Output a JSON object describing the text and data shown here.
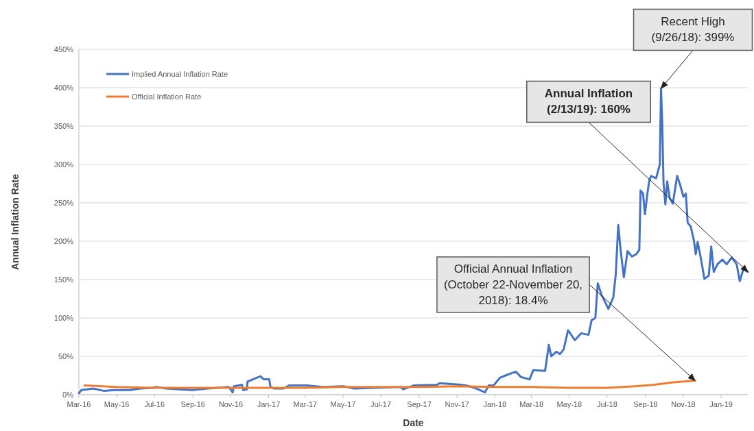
{
  "chart_data": {
    "type": "line",
    "xlabel": "Date",
    "ylabel": "Annual Inflation Rate",
    "xlim": [
      "2016-03-01",
      "2019-02-13"
    ],
    "ylim": [
      0,
      450
    ],
    "xticks": [
      {
        "value": "2016-03-01",
        "label": "Mar-16"
      },
      {
        "value": "2016-05-01",
        "label": "May-16"
      },
      {
        "value": "2016-07-01",
        "label": "Jul-16"
      },
      {
        "value": "2016-09-01",
        "label": "Sep-16"
      },
      {
        "value": "2016-11-01",
        "label": "Nov-16"
      },
      {
        "value": "2017-01-01",
        "label": "Jan-17"
      },
      {
        "value": "2017-03-01",
        "label": "Mar-17"
      },
      {
        "value": "2017-05-01",
        "label": "May-17"
      },
      {
        "value": "2017-07-01",
        "label": "Jul-17"
      },
      {
        "value": "2017-09-01",
        "label": "Sep-17"
      },
      {
        "value": "2017-11-01",
        "label": "Nov-17"
      },
      {
        "value": "2018-01-01",
        "label": "Jan-18"
      },
      {
        "value": "2018-03-01",
        "label": "Mar-18"
      },
      {
        "value": "2018-05-01",
        "label": "May-18"
      },
      {
        "value": "2018-07-01",
        "label": "Jul-18"
      },
      {
        "value": "2018-09-01",
        "label": "Sep-18"
      },
      {
        "value": "2018-11-01",
        "label": "Nov-18"
      },
      {
        "value": "2019-01-01",
        "label": "Jan-19"
      }
    ],
    "yticks": [
      {
        "value": 0,
        "label": "0%"
      },
      {
        "value": 50,
        "label": "50%"
      },
      {
        "value": 100,
        "label": "100%"
      },
      {
        "value": 150,
        "label": "150%"
      },
      {
        "value": 200,
        "label": "200%"
      },
      {
        "value": 250,
        "label": "250%"
      },
      {
        "value": 300,
        "label": "300%"
      },
      {
        "value": 350,
        "label": "350%"
      },
      {
        "value": 400,
        "label": "400%"
      },
      {
        "value": 450,
        "label": "450%"
      }
    ],
    "grid": "y",
    "legend": "top left",
    "series": [
      {
        "name": "Implied Annual Inflation Rate",
        "color": "#4472c4",
        "x": [
          "2016-03-01",
          "2016-03-05",
          "2016-03-24",
          "2016-04-10",
          "2016-04-27",
          "2016-05-22",
          "2016-06-08",
          "2016-06-29",
          "2016-07-03",
          "2016-07-20",
          "2016-08-10",
          "2016-08-31",
          "2016-09-25",
          "2016-10-29",
          "2016-11-04",
          "2016-11-06",
          "2016-11-19",
          "2016-11-21",
          "2016-11-27",
          "2016-11-28",
          "2016-12-10",
          "2016-12-19",
          "2016-12-24",
          "2017-01-02",
          "2017-01-04",
          "2017-01-10",
          "2017-01-25",
          "2017-02-03",
          "2017-03-04",
          "2017-03-29",
          "2017-05-02",
          "2017-05-19",
          "2017-06-21",
          "2017-08-02",
          "2017-08-06",
          "2017-08-23",
          "2017-09-30",
          "2017-10-04",
          "2017-11-07",
          "2017-11-15",
          "2017-11-25",
          "2017-12-05",
          "2017-12-16",
          "2017-12-22",
          "2017-12-30",
          "2018-01-09",
          "2018-01-18",
          "2018-01-28",
          "2018-02-04",
          "2018-02-12",
          "2018-02-26",
          "2018-03-04",
          "2018-03-23",
          "2018-03-29",
          "2018-04-02",
          "2018-04-10",
          "2018-04-16",
          "2018-04-22",
          "2018-04-29",
          "2018-05-10",
          "2018-05-20",
          "2018-06-01",
          "2018-06-06",
          "2018-06-12",
          "2018-06-16",
          "2018-06-22",
          "2018-06-27",
          "2018-07-03",
          "2018-07-08",
          "2018-07-11",
          "2018-07-15",
          "2018-07-19",
          "2018-07-23",
          "2018-07-28",
          "2018-08-03",
          "2018-08-10",
          "2018-08-17",
          "2018-08-22",
          "2018-08-24",
          "2018-08-28",
          "2018-08-31",
          "2018-09-04",
          "2018-09-07",
          "2018-09-10",
          "2018-09-18",
          "2018-09-24",
          "2018-09-26",
          "2018-09-28",
          "2018-09-30",
          "2018-10-03",
          "2018-10-06",
          "2018-10-10",
          "2018-10-15",
          "2018-10-22",
          "2018-10-27",
          "2018-11-01",
          "2018-11-05",
          "2018-11-08",
          "2018-11-13",
          "2018-11-18",
          "2018-11-21",
          "2018-11-24",
          "2018-11-28",
          "2018-12-05",
          "2018-12-12",
          "2018-12-16",
          "2018-12-20",
          "2018-12-26",
          "2019-01-03",
          "2019-01-10",
          "2019-01-18",
          "2019-01-26",
          "2019-01-31",
          "2019-02-06",
          "2019-02-13"
        ],
        "values": [
          2,
          6,
          8,
          5,
          6,
          6,
          8,
          9,
          10,
          8,
          7,
          6,
          8,
          10,
          3,
          11,
          13,
          6,
          7,
          17,
          21,
          24,
          20,
          20,
          10,
          8,
          8,
          12,
          12,
          10,
          11,
          8,
          9,
          10,
          7,
          12,
          13,
          15,
          13,
          12,
          10,
          7,
          3,
          12,
          12,
          22,
          25,
          28,
          30,
          23,
          20,
          32,
          31,
          65,
          50,
          56,
          53,
          59,
          84,
          71,
          80,
          78,
          97,
          100,
          145,
          130,
          122,
          112,
          121,
          127,
          157,
          221,
          187,
          153,
          187,
          180,
          183,
          189,
          266,
          262,
          235,
          262,
          279,
          285,
          282,
          300,
          399,
          352,
          276,
          248,
          278,
          256,
          249,
          285,
          273,
          258,
          262,
          224,
          219,
          201,
          183,
          199,
          183,
          151,
          155,
          193,
          160,
          170,
          176,
          170,
          179,
          170,
          148,
          164,
          160
        ]
      },
      {
        "name": "Official Inflation Rate",
        "color": "#ed7d31",
        "x": [
          "2016-03-10",
          "2016-05-01",
          "2016-07-01",
          "2016-09-01",
          "2016-11-01",
          "2017-01-01",
          "2017-03-01",
          "2017-05-01",
          "2017-07-01",
          "2017-09-01",
          "2017-11-01",
          "2018-01-01",
          "2018-03-01",
          "2018-05-01",
          "2018-07-01",
          "2018-08-15",
          "2018-09-15",
          "2018-10-15",
          "2018-11-20"
        ],
        "values": [
          12,
          10,
          9,
          9,
          9,
          9,
          9,
          10,
          10,
          10,
          11,
          10,
          10,
          9,
          9,
          11,
          13,
          16,
          18.4
        ]
      }
    ],
    "annotations": [
      "Recent High\n(9/26/18): 399%",
      "Annual Inflation\n(2/13/19): 160%",
      "Official Annual Inflation\n(October 22-November 20,\n2018): 18.4%"
    ]
  }
}
